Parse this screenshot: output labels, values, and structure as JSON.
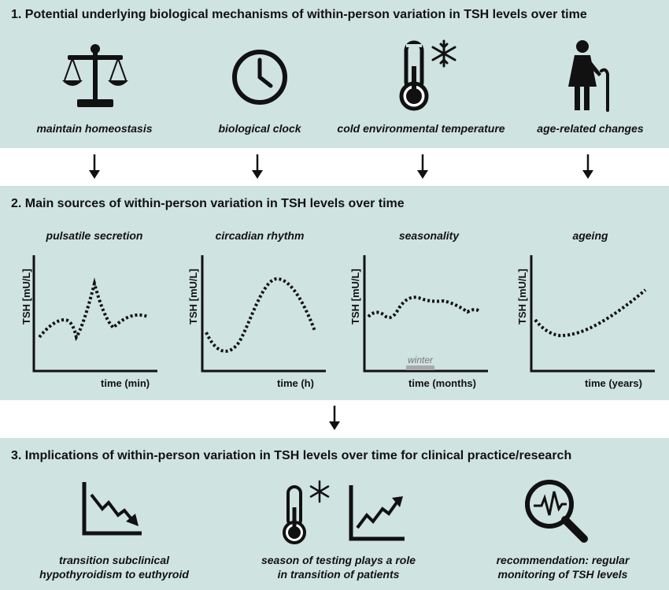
{
  "section1": {
    "title": "1. Potential underlying biological mechanisms of within-person variation in TSH levels over time",
    "items": [
      {
        "icon": "balance-scale-icon",
        "label": "maintain homeostasis"
      },
      {
        "icon": "clock-icon",
        "label": "biological clock"
      },
      {
        "icon": "thermometer-snowflake-icon",
        "label": "cold environmental temperature"
      },
      {
        "icon": "elderly-person-icon",
        "label": "age-related changes"
      }
    ]
  },
  "section2": {
    "title": "2. Main sources of within-person variation in TSH levels over time",
    "y_axis_label": "TSH [mU/L]",
    "charts": [
      {
        "title": "pulsatile secretion",
        "xlabel": "time (min)"
      },
      {
        "title": "circadian rhythm",
        "xlabel": "time (h)"
      },
      {
        "title": "seasonality",
        "xlabel": "time (months)",
        "annotation": "winter"
      },
      {
        "title": "ageing",
        "xlabel": "time (years)"
      }
    ]
  },
  "section3": {
    "title": "3. Implications of within-person variation in TSH levels over time for clinical practice/research",
    "items": [
      {
        "icon": "declining-trend-icon",
        "line1": "transition subclinical",
        "line2": "hypothyroidism to euthyroid"
      },
      {
        "icon": "thermometer-rising-trend-icon",
        "line1": "season of testing plays a role",
        "line2": "in transition of patients"
      },
      {
        "icon": "magnifier-pulse-icon",
        "line1": "recommendation: regular",
        "line2": "monitoring of TSH levels"
      }
    ]
  },
  "colors": {
    "panel_background": "#cfe3e1",
    "ink": "#111111",
    "winter_bar": "#a9a9a9"
  }
}
